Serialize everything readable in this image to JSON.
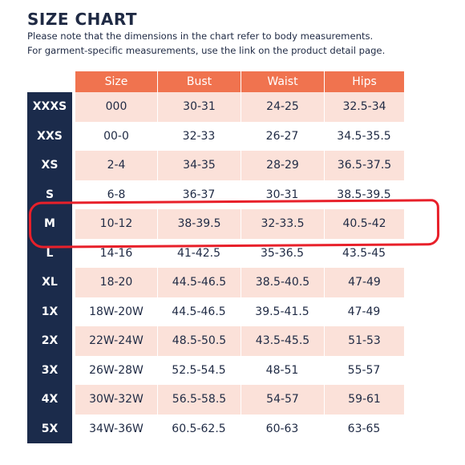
{
  "title": "SIZE CHART",
  "note_line1": "Please note that the dimensions in the chart refer to body measurements.",
  "note_line2": "For garment-specific measurements, use the link on the product detail page.",
  "headers": {
    "size": "Size",
    "bust": "Bust",
    "waist": "Waist",
    "hips": "Hips"
  },
  "rows": [
    {
      "label": "XXXS",
      "size": "000",
      "bust": "30-31",
      "waist": "24-25",
      "hips": "32.5-34"
    },
    {
      "label": "XXS",
      "size": "00-0",
      "bust": "32-33",
      "waist": "26-27",
      "hips": "34.5-35.5"
    },
    {
      "label": "XS",
      "size": "2-4",
      "bust": "34-35",
      "waist": "28-29",
      "hips": "36.5-37.5"
    },
    {
      "label": "S",
      "size": "6-8",
      "bust": "36-37",
      "waist": "30-31",
      "hips": "38.5-39.5"
    },
    {
      "label": "M",
      "size": "10-12",
      "bust": "38-39.5",
      "waist": "32-33.5",
      "hips": "40.5-42"
    },
    {
      "label": "L",
      "size": "14-16",
      "bust": "41-42.5",
      "waist": "35-36.5",
      "hips": "43.5-45"
    },
    {
      "label": "XL",
      "size": "18-20",
      "bust": "44.5-46.5",
      "waist": "38.5-40.5",
      "hips": "47-49"
    },
    {
      "label": "1X",
      "size": "18W-20W",
      "bust": "44.5-46.5",
      "waist": "39.5-41.5",
      "hips": "47-49"
    },
    {
      "label": "2X",
      "size": "22W-24W",
      "bust": "48.5-50.5",
      "waist": "43.5-45.5",
      "hips": "51-53"
    },
    {
      "label": "3X",
      "size": "26W-28W",
      "bust": "52.5-54.5",
      "waist": "48-51",
      "hips": "55-57"
    },
    {
      "label": "4X",
      "size": "30W-32W",
      "bust": "56.5-58.5",
      "waist": "54-57",
      "hips": "59-61"
    },
    {
      "label": "5X",
      "size": "34W-36W",
      "bust": "60.5-62.5",
      "waist": "60-63",
      "hips": "63-65"
    }
  ],
  "colors": {
    "header_bg": "#f0734f",
    "label_bg": "#1b2b4b",
    "row_shade": "#fbe1d9",
    "highlight": "#e8202a"
  }
}
